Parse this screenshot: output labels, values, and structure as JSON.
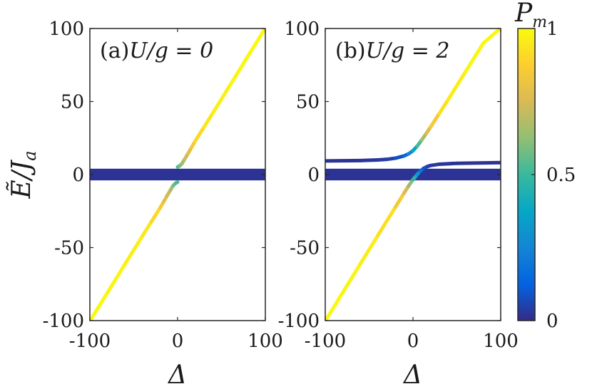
{
  "chart_data": [
    {
      "type": "line",
      "title": "(a)U/g = 0",
      "title_parts": {
        "prefix": "(a)",
        "expr": "U/g = 0"
      },
      "xlabel": "Δ",
      "ylabel": "Ẽ/J_a",
      "ylabel_parts": {
        "main": "Ẽ/J",
        "sub": "a"
      },
      "xlim": [
        -100,
        100
      ],
      "ylim": [
        -100,
        100
      ],
      "xticks": [
        "-100",
        "0",
        "100"
      ],
      "yticks": [
        "100",
        "50",
        "0",
        "-50",
        "-100"
      ],
      "xtick_values": [
        -100,
        0,
        100
      ],
      "ytick_values": [
        100,
        50,
        0,
        -50,
        -100
      ],
      "grid": false,
      "color_variable": "P_m",
      "series": [
        {
          "points": [
            [
              0,
              5.2
            ],
            [
              2,
              5.8
            ],
            [
              5,
              7.5
            ],
            [
              8,
              10.5
            ],
            [
              12,
              14.5
            ],
            [
              16,
              18.7
            ],
            [
              20,
              22.9
            ],
            [
              30,
              32.4
            ],
            [
              40,
              42.0
            ],
            [
              60,
              61.4
            ],
            [
              80,
              80.9
            ],
            [
              100,
              100.3
            ]
          ],
          "pm": [
            0.5,
            0.55,
            0.62,
            0.7,
            0.76,
            0.82,
            0.88,
            0.93,
            0.96,
            0.98,
            0.99,
            1.0
          ]
        },
        {
          "points": [
            [
              -100,
              -100.3
            ],
            [
              -80,
              -80.9
            ],
            [
              -60,
              -61.4
            ],
            [
              -40,
              -42.0
            ],
            [
              -30,
              -32.4
            ],
            [
              -20,
              -22.9
            ],
            [
              -16,
              -18.7
            ],
            [
              -12,
              -14.5
            ],
            [
              -8,
              -10.5
            ],
            [
              -5,
              -7.5
            ],
            [
              -2,
              -5.8
            ],
            [
              0,
              -5.2
            ]
          ],
          "pm": [
            1.0,
            0.99,
            0.98,
            0.96,
            0.93,
            0.88,
            0.82,
            0.76,
            0.7,
            0.62,
            0.55,
            0.5
          ]
        }
      ],
      "bands": [
        {
          "x": [
            -100,
            100
          ],
          "y": [
            -4,
            4
          ],
          "pm": 0.02
        }
      ]
    },
    {
      "type": "line",
      "title": "(b)U/g = 2",
      "title_parts": {
        "prefix": "(b)",
        "expr": "U/g = 2"
      },
      "xlabel": "Δ",
      "xlim": [
        -100,
        100
      ],
      "ylim": [
        -100,
        100
      ],
      "xticks": [
        "-100",
        "0",
        "100"
      ],
      "yticks": [
        "100",
        "50",
        "0",
        "-50",
        "-100"
      ],
      "xtick_values": [
        -100,
        0,
        100
      ],
      "ytick_values": [
        100,
        50,
        0,
        -50,
        -100
      ],
      "grid": false,
      "color_variable": "P_m",
      "series": [
        {
          "points": [
            [
              -100,
              9.3
            ],
            [
              -60,
              9.6
            ],
            [
              -40,
              10.0
            ],
            [
              -30,
              10.4
            ],
            [
              -20,
              11.2
            ],
            [
              -10,
              12.8
            ],
            [
              -5,
              14.2
            ],
            [
              0,
              16.3
            ],
            [
              5,
              19.6
            ],
            [
              10,
              23.7
            ],
            [
              15,
              28.0
            ],
            [
              20,
              32.5
            ],
            [
              30,
              41.8
            ],
            [
              40,
              51.2
            ],
            [
              60,
              70.5
            ],
            [
              80,
              89.8
            ],
            [
              100,
              100.3
            ]
          ],
          "pm": [
            0.02,
            0.02,
            0.03,
            0.04,
            0.06,
            0.1,
            0.2,
            0.3,
            0.45,
            0.6,
            0.72,
            0.8,
            0.9,
            0.95,
            0.98,
            0.99,
            1.0
          ]
        },
        {
          "points": [
            [
              -100,
              -100.3
            ],
            [
              -80,
              -80.7
            ],
            [
              -60,
              -61.2
            ],
            [
              -40,
              -41.7
            ],
            [
              -20,
              -22.3
            ],
            [
              -10,
              -12.5
            ],
            [
              -5,
              -7.8
            ],
            [
              0,
              -3.5
            ],
            [
              4,
              -0.5
            ],
            [
              8,
              2.2
            ],
            [
              12,
              4.2
            ],
            [
              16,
              5.4
            ],
            [
              20,
              6.2
            ],
            [
              30,
              7.1
            ],
            [
              50,
              7.7
            ],
            [
              100,
              8.2
            ]
          ],
          "pm": [
            1.0,
            0.99,
            0.98,
            0.95,
            0.9,
            0.8,
            0.7,
            0.55,
            0.4,
            0.25,
            0.12,
            0.06,
            0.04,
            0.03,
            0.02,
            0.02
          ]
        }
      ],
      "bands": [
        {
          "x": [
            -100,
            100
          ],
          "y": [
            -4,
            4
          ],
          "pm": 0.02
        }
      ]
    }
  ],
  "colorbar": {
    "label": "P_m",
    "label_parts": {
      "main": "P",
      "sub": "m"
    },
    "range": [
      0,
      1
    ],
    "ticks": [
      "0",
      "0.5",
      "1"
    ],
    "tick_values": [
      0,
      0.5,
      1
    ],
    "colormap": "parula",
    "colormap_stops": [
      "#352a87",
      "#0363e1",
      "#1485d4",
      "#06a7c6",
      "#38b99e",
      "#92bf73",
      "#d9ba56",
      "#fcce2e",
      "#f9fb0e"
    ]
  }
}
